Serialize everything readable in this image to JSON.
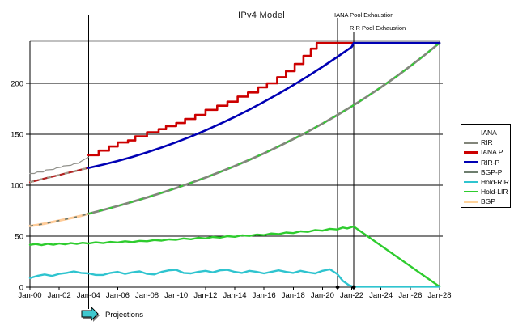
{
  "title": "IPv4 Model",
  "annotations": {
    "iana_pool": "IANA Pool Exhaustion",
    "rir_pool": "RIR Pool Exhaustion",
    "projections": "Projections"
  },
  "legend": {
    "items": [
      {
        "label": "IANA",
        "color": "#90908a",
        "weight": 1
      },
      {
        "label": "RIR",
        "color": "#82857a",
        "weight": 3
      },
      {
        "label": "IANA P",
        "color": "#cc0000",
        "weight": 2.5
      },
      {
        "label": "RIR-P",
        "color": "#0000b4",
        "weight": 2.5
      },
      {
        "label": "BGP-P",
        "color": "#6e7e6e",
        "weight": 3
      },
      {
        "label": "Hold-RIR",
        "color": "#2fc4cf",
        "weight": 2.5
      },
      {
        "label": "Hold-LIR",
        "color": "#2ecc2e",
        "weight": 2.5
      },
      {
        "label": "BGP",
        "color": "#ffd39b",
        "weight": 3
      }
    ]
  },
  "colors": {
    "frame": "#000000",
    "frame_top": "#808080",
    "grid": "#000000",
    "arrow_fill": "#3fc8cf",
    "arrow_shadow": "#777777"
  },
  "chart_data": {
    "type": "line",
    "title": "IPv4 Model",
    "xlabel": "",
    "ylabel": "",
    "xlim": [
      2000,
      2028
    ],
    "ylim": [
      0,
      241
    ],
    "grid": "horizontal",
    "legend_position": "right",
    "x_ticks": [
      "Jan-00",
      "Jan-02",
      "Jan-04",
      "Jan-06",
      "Jan-08",
      "Jan-10",
      "Jan-12",
      "Jan-14",
      "Jan-16",
      "Jan-18",
      "Jan-20",
      "Jan-22",
      "Jan-24",
      "Jan-26",
      "Jan-28"
    ],
    "x_tick_years": [
      2000,
      2002,
      2004,
      2006,
      2008,
      2010,
      2012,
      2014,
      2016,
      2018,
      2020,
      2022,
      2024,
      2026,
      2028
    ],
    "y_ticks": [
      0,
      50,
      100,
      150,
      200
    ],
    "events": [
      {
        "label": "Projections",
        "year": 2004,
        "marker": false
      },
      {
        "label": "IANA Pool Exhaustion",
        "year": 2021.03,
        "marker": true
      },
      {
        "label": "RIR Pool Exhaustion",
        "year": 2022.13,
        "marker": true
      }
    ],
    "series": [
      {
        "name": "BGP",
        "color": "#ffcc99",
        "width": 3,
        "overlay": {
          "color": "#68766b",
          "width": 1.6,
          "dash": "4,7"
        },
        "points": [
          [
            2000,
            60
          ],
          [
            2000.5,
            61
          ],
          [
            2001,
            62.3
          ],
          [
            2001.5,
            63.8
          ],
          [
            2002,
            65.3
          ],
          [
            2002.5,
            66.8
          ],
          [
            2003,
            68.3
          ],
          [
            2003.5,
            70
          ],
          [
            2004,
            72
          ]
        ]
      },
      {
        "name": "RIR",
        "color": "#b22222",
        "width": 2.2,
        "overlay": {
          "color": "#a09a8a",
          "width": 2.2,
          "dash": "5,6"
        },
        "points": [
          [
            2000,
            103
          ],
          [
            2000.5,
            104.8
          ],
          [
            2001,
            106.6
          ],
          [
            2001.5,
            108.3
          ],
          [
            2002,
            110
          ],
          [
            2002.5,
            111.8
          ],
          [
            2003,
            113.5
          ],
          [
            2003.5,
            115.3
          ],
          [
            2004,
            117
          ]
        ]
      },
      {
        "name": "IANA",
        "color": "#90908a",
        "width": 1.2,
        "overlay": null,
        "points": [
          [
            2000,
            111.5
          ],
          [
            2000.3,
            111.5
          ],
          [
            2000.5,
            113
          ],
          [
            2000.9,
            113
          ],
          [
            2001.1,
            115
          ],
          [
            2001.6,
            115.5
          ],
          [
            2001.8,
            117
          ],
          [
            2002.1,
            117.5
          ],
          [
            2002.3,
            119
          ],
          [
            2002.8,
            119.5
          ],
          [
            2003,
            121
          ],
          [
            2003.3,
            121.5
          ],
          [
            2003.5,
            123.5
          ],
          [
            2003.75,
            125.5
          ],
          [
            2004,
            127.5
          ]
        ]
      },
      {
        "name": "BGP-P",
        "color": "#82887c",
        "width": 2.8,
        "overlay": {
          "color": "#33cc33",
          "width": 2,
          "dash": "5,8"
        },
        "points": [
          [
            2004,
            72
          ],
          [
            2005,
            75.7
          ],
          [
            2006,
            79.6
          ],
          [
            2007,
            83.7
          ],
          [
            2008,
            88
          ],
          [
            2009,
            92.5
          ],
          [
            2010,
            97.3
          ],
          [
            2011,
            102.3
          ],
          [
            2012,
            107.5
          ],
          [
            2013,
            113
          ],
          [
            2014,
            118.8
          ],
          [
            2015,
            124.9
          ],
          [
            2016,
            131.3
          ],
          [
            2017,
            138.1
          ],
          [
            2018,
            145.2
          ],
          [
            2019,
            152.6
          ],
          [
            2020,
            160.5
          ],
          [
            2021,
            168.7
          ],
          [
            2022,
            177.4
          ],
          [
            2023,
            186.5
          ],
          [
            2024,
            196.1
          ],
          [
            2025,
            206.2
          ],
          [
            2026,
            216.8
          ],
          [
            2027,
            227.9
          ],
          [
            2028,
            239.6
          ]
        ]
      },
      {
        "name": "Hold-LIR",
        "color": "#2ecc2e",
        "width": 2.4,
        "overlay": null,
        "points": [
          [
            2000,
            41.5
          ],
          [
            2000.4,
            42.3
          ],
          [
            2000.8,
            41.2
          ],
          [
            2001.2,
            42.5
          ],
          [
            2001.6,
            41.6
          ],
          [
            2002,
            42.8
          ],
          [
            2002.4,
            42
          ],
          [
            2002.8,
            43.2
          ],
          [
            2003.2,
            42.4
          ],
          [
            2003.6,
            43.5
          ],
          [
            2004,
            42.8
          ],
          [
            2004.5,
            44
          ],
          [
            2005,
            43.2
          ],
          [
            2005.5,
            44.4
          ],
          [
            2006,
            43.8
          ],
          [
            2006.5,
            45
          ],
          [
            2007,
            44.2
          ],
          [
            2007.5,
            45.4
          ],
          [
            2008,
            45
          ],
          [
            2008.5,
            46.2
          ],
          [
            2009,
            45.6
          ],
          [
            2009.5,
            46.8
          ],
          [
            2010,
            46.4
          ],
          [
            2010.5,
            47.8
          ],
          [
            2011,
            47
          ],
          [
            2011.5,
            48.4
          ],
          [
            2012,
            47.8
          ],
          [
            2012.5,
            49.2
          ],
          [
            2013,
            48.6
          ],
          [
            2013.5,
            50
          ],
          [
            2014,
            49.4
          ],
          [
            2014.5,
            50.8
          ],
          [
            2015,
            50.2
          ],
          [
            2015.5,
            51.6
          ],
          [
            2016,
            51
          ],
          [
            2016.5,
            52.6
          ],
          [
            2017,
            52
          ],
          [
            2017.5,
            53.6
          ],
          [
            2018,
            53
          ],
          [
            2018.5,
            54.8
          ],
          [
            2019,
            54.2
          ],
          [
            2019.5,
            56
          ],
          [
            2020,
            55.4
          ],
          [
            2020.5,
            57.2
          ],
          [
            2021,
            56.6
          ],
          [
            2021.4,
            58.5
          ],
          [
            2021.7,
            57.6
          ],
          [
            2022.13,
            59.5
          ],
          [
            2028,
            0.5
          ]
        ]
      },
      {
        "name": "Hold-RIR",
        "color": "#2fc4cf",
        "width": 2.4,
        "overlay": null,
        "points": [
          [
            2000,
            9
          ],
          [
            2000.5,
            11
          ],
          [
            2001,
            12.5
          ],
          [
            2001.5,
            11
          ],
          [
            2002,
            13
          ],
          [
            2002.5,
            14
          ],
          [
            2003,
            15.5
          ],
          [
            2003.5,
            14
          ],
          [
            2004,
            13.5
          ],
          [
            2004.5,
            12
          ],
          [
            2005,
            12
          ],
          [
            2005.5,
            14
          ],
          [
            2006,
            15
          ],
          [
            2006.5,
            13
          ],
          [
            2007,
            14.5
          ],
          [
            2007.5,
            15.5
          ],
          [
            2008,
            13
          ],
          [
            2008.5,
            12.5
          ],
          [
            2009,
            15
          ],
          [
            2009.5,
            16.5
          ],
          [
            2010,
            17
          ],
          [
            2010.5,
            14
          ],
          [
            2011,
            13.5
          ],
          [
            2011.5,
            15
          ],
          [
            2012,
            16
          ],
          [
            2012.5,
            14.5
          ],
          [
            2013,
            16.5
          ],
          [
            2013.5,
            17
          ],
          [
            2014,
            15
          ],
          [
            2014.5,
            14
          ],
          [
            2015,
            16
          ],
          [
            2015.5,
            15
          ],
          [
            2016,
            13.5
          ],
          [
            2016.5,
            15
          ],
          [
            2017,
            16.5
          ],
          [
            2017.5,
            15
          ],
          [
            2018,
            14
          ],
          [
            2018.5,
            16
          ],
          [
            2019,
            14.5
          ],
          [
            2019.5,
            13.5
          ],
          [
            2020,
            16
          ],
          [
            2020.5,
            17.5
          ],
          [
            2021,
            13
          ],
          [
            2021.4,
            6
          ],
          [
            2021.8,
            2
          ],
          [
            2022.1,
            0.5
          ],
          [
            2028,
            0.5
          ]
        ]
      },
      {
        "name": "IANA P",
        "color": "#cc0000",
        "width": 2.6,
        "overlay": null,
        "points": [
          [
            2004,
            129.5
          ],
          [
            2004.7,
            129.5
          ],
          [
            2004.7,
            134
          ],
          [
            2005.4,
            134
          ],
          [
            2005.4,
            138
          ],
          [
            2006,
            138
          ],
          [
            2006,
            142
          ],
          [
            2006.7,
            142
          ],
          [
            2006.7,
            144
          ],
          [
            2007.2,
            144
          ],
          [
            2007.2,
            148
          ],
          [
            2008,
            148
          ],
          [
            2008,
            152
          ],
          [
            2008.8,
            152
          ],
          [
            2008.8,
            155
          ],
          [
            2009.3,
            155
          ],
          [
            2009.3,
            158
          ],
          [
            2010,
            158
          ],
          [
            2010,
            161
          ],
          [
            2010.6,
            161
          ],
          [
            2010.6,
            165
          ],
          [
            2011.3,
            165
          ],
          [
            2011.3,
            169
          ],
          [
            2012,
            169
          ],
          [
            2012,
            174
          ],
          [
            2012.8,
            174
          ],
          [
            2012.8,
            178
          ],
          [
            2013.5,
            178
          ],
          [
            2013.5,
            182
          ],
          [
            2014.2,
            182
          ],
          [
            2014.2,
            187
          ],
          [
            2014.9,
            187
          ],
          [
            2014.9,
            191
          ],
          [
            2015.6,
            191
          ],
          [
            2015.6,
            196
          ],
          [
            2016.2,
            196
          ],
          [
            2016.2,
            200
          ],
          [
            2016.9,
            200
          ],
          [
            2016.9,
            206
          ],
          [
            2017.5,
            206
          ],
          [
            2017.5,
            212
          ],
          [
            2018.1,
            212
          ],
          [
            2018.1,
            219
          ],
          [
            2018.7,
            219
          ],
          [
            2018.7,
            227
          ],
          [
            2019.2,
            227
          ],
          [
            2019.2,
            234
          ],
          [
            2019.6,
            234
          ],
          [
            2019.6,
            239.5
          ],
          [
            2022.13,
            239.5
          ]
        ]
      },
      {
        "name": "RIR-P",
        "color": "#0000b4",
        "width": 2.6,
        "overlay": null,
        "points": [
          [
            2004,
            117
          ],
          [
            2005,
            120.2
          ],
          [
            2006,
            123.8
          ],
          [
            2007,
            127.8
          ],
          [
            2008,
            132.2
          ],
          [
            2009,
            137
          ],
          [
            2010,
            142.2
          ],
          [
            2011,
            147.8
          ],
          [
            2012,
            153.8
          ],
          [
            2013,
            160.2
          ],
          [
            2014,
            167
          ],
          [
            2015,
            174.2
          ],
          [
            2016,
            181.8
          ],
          [
            2017,
            189.8
          ],
          [
            2018,
            198.2
          ],
          [
            2019,
            207
          ],
          [
            2020,
            216.2
          ],
          [
            2021,
            225.8
          ],
          [
            2022,
            235.8
          ],
          [
            2022.13,
            239.5
          ],
          [
            2028,
            239.5
          ]
        ]
      }
    ]
  }
}
